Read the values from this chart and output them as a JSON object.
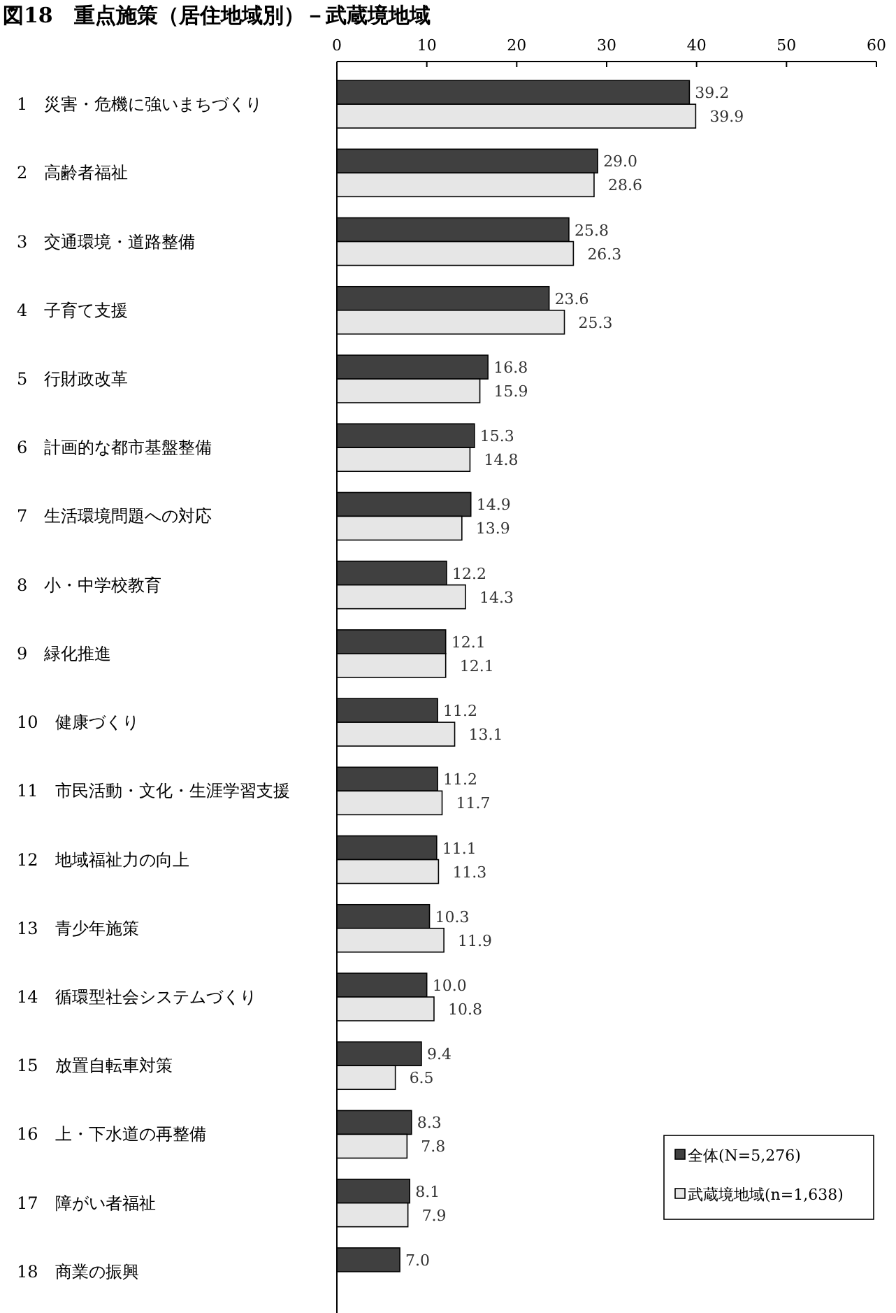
{
  "chart_data": {
    "type": "bar",
    "orientation": "horizontal",
    "title": "図18　重点施策（居住地域別）－武蔵境地域",
    "categories": [
      "1　災害・危機に強いまちづくり",
      "2　高齢者福祉",
      "3　交通環境・道路整備",
      "4　子育て支援",
      "5　行財政改革",
      "6　計画的な都市基盤整備",
      "7　生活環境問題への対応",
      "8　小・中学校教育",
      "9　緑化推進",
      "10　健康づくり",
      "11　市民活動・文化・生涯学習支援",
      "12　地域福祉力の向上",
      "13　青少年施策",
      "14　循環型社会システムづくり",
      "15　放置自転車対策",
      "16　上・下水道の再整備",
      "17　障がい者福祉",
      "18　商業の振興"
    ],
    "series": [
      {
        "name": "全体(N=5,276)",
        "color": "#404040",
        "values": [
          39.2,
          29.0,
          25.8,
          23.6,
          16.8,
          15.3,
          14.9,
          12.2,
          12.1,
          11.2,
          11.2,
          11.1,
          10.3,
          10.0,
          9.4,
          8.3,
          8.1,
          7.0
        ],
        "value_labels": [
          "39.2",
          "29.0",
          "25.8",
          "23.6",
          "16.8",
          "15.3",
          "14.9",
          "12.2",
          "12.1",
          "11.2",
          "11.2",
          "11.1",
          "10.3",
          "10.0",
          "9.4",
          "8.3",
          "8.1",
          "7.0"
        ]
      },
      {
        "name": "武蔵境地域(n=1,638)",
        "color": "#e6e6e6",
        "values": [
          39.9,
          28.6,
          26.3,
          25.3,
          15.9,
          14.8,
          13.9,
          14.3,
          12.1,
          13.1,
          11.7,
          11.3,
          11.9,
          10.8,
          6.5,
          7.8,
          7.9,
          null
        ],
        "value_labels": [
          "39.9",
          "28.6",
          "26.3",
          "25.3",
          "15.9",
          "14.8",
          "13.9",
          "14.3",
          "12.1",
          "13.1",
          "11.7",
          "11.3",
          "11.9",
          "10.8",
          "6.5",
          "7.8",
          "7.9",
          null
        ]
      }
    ],
    "xlim": [
      0,
      60
    ],
    "xticks": [
      0,
      10,
      20,
      30,
      40,
      50,
      60
    ],
    "legend": "bottom right",
    "grid": false
  }
}
